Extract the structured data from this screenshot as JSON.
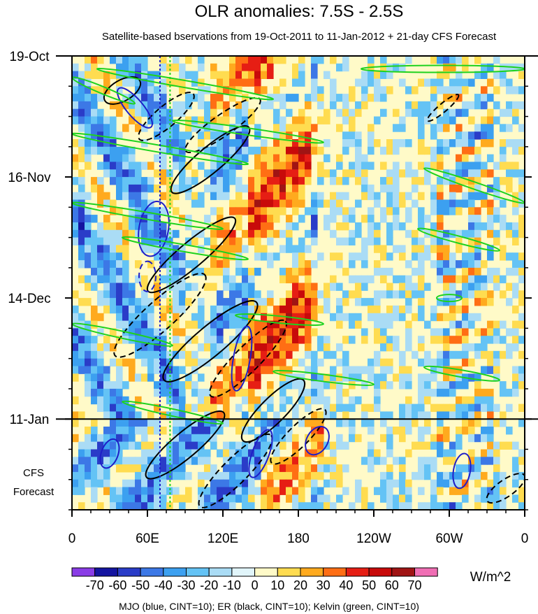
{
  "chart_data": {
    "type": "heatmap",
    "title": "OLR anomalies: 7.5S - 2.5S",
    "subtitle": "Satellite-based bservations from 19-Oct-2011 to 11-Jan-2012 + 21-day CFS Forecast",
    "xlabel": "",
    "ylabel": "",
    "x_ticks": [
      {
        "lon": 0,
        "label": "0"
      },
      {
        "lon": 60,
        "label": "60E"
      },
      {
        "lon": 120,
        "label": "120E"
      },
      {
        "lon": 180,
        "label": "180"
      },
      {
        "lon": 240,
        "label": "120W"
      },
      {
        "lon": 300,
        "label": "60W"
      },
      {
        "lon": 360,
        "label": "0"
      }
    ],
    "xlim": [
      0,
      360
    ],
    "y_ticks": [
      {
        "day": 0,
        "label": "19-Oct"
      },
      {
        "day": 28,
        "label": "16-Nov"
      },
      {
        "day": 56,
        "label": "14-Dec"
      },
      {
        "day": 84,
        "label": "11-Jan"
      }
    ],
    "ylim_days": [
      0,
      105
    ],
    "forecast_start_day": 84,
    "forecast_label_1": "CFS",
    "forecast_label_2": "Forecast",
    "colorbar": {
      "labels": [
        "-70",
        "-60",
        "-50",
        "-40",
        "-30",
        "-20",
        "-10",
        "0",
        "10",
        "20",
        "30",
        "40",
        "50",
        "60",
        "70"
      ],
      "colors": [
        "#8a3ce6",
        "#1414a0",
        "#2a3cc8",
        "#3c78e6",
        "#3ca0f0",
        "#64c3f5",
        "#aadcf5",
        "#e1f5fa",
        "#fffac8",
        "#ffdc50",
        "#ffaa1e",
        "#ff6e14",
        "#e61e14",
        "#c80a0a",
        "#a01414",
        "#f06eb4"
      ],
      "units": "W/m^2"
    },
    "footer": "MJO (blue, CINT=10); ER (black, CINT=10); Kelvin (green, CINT=10)",
    "series_colors": {
      "mjo": "#1e1ec8",
      "er": "#000000",
      "kelvin": "#1ed21e"
    }
  }
}
